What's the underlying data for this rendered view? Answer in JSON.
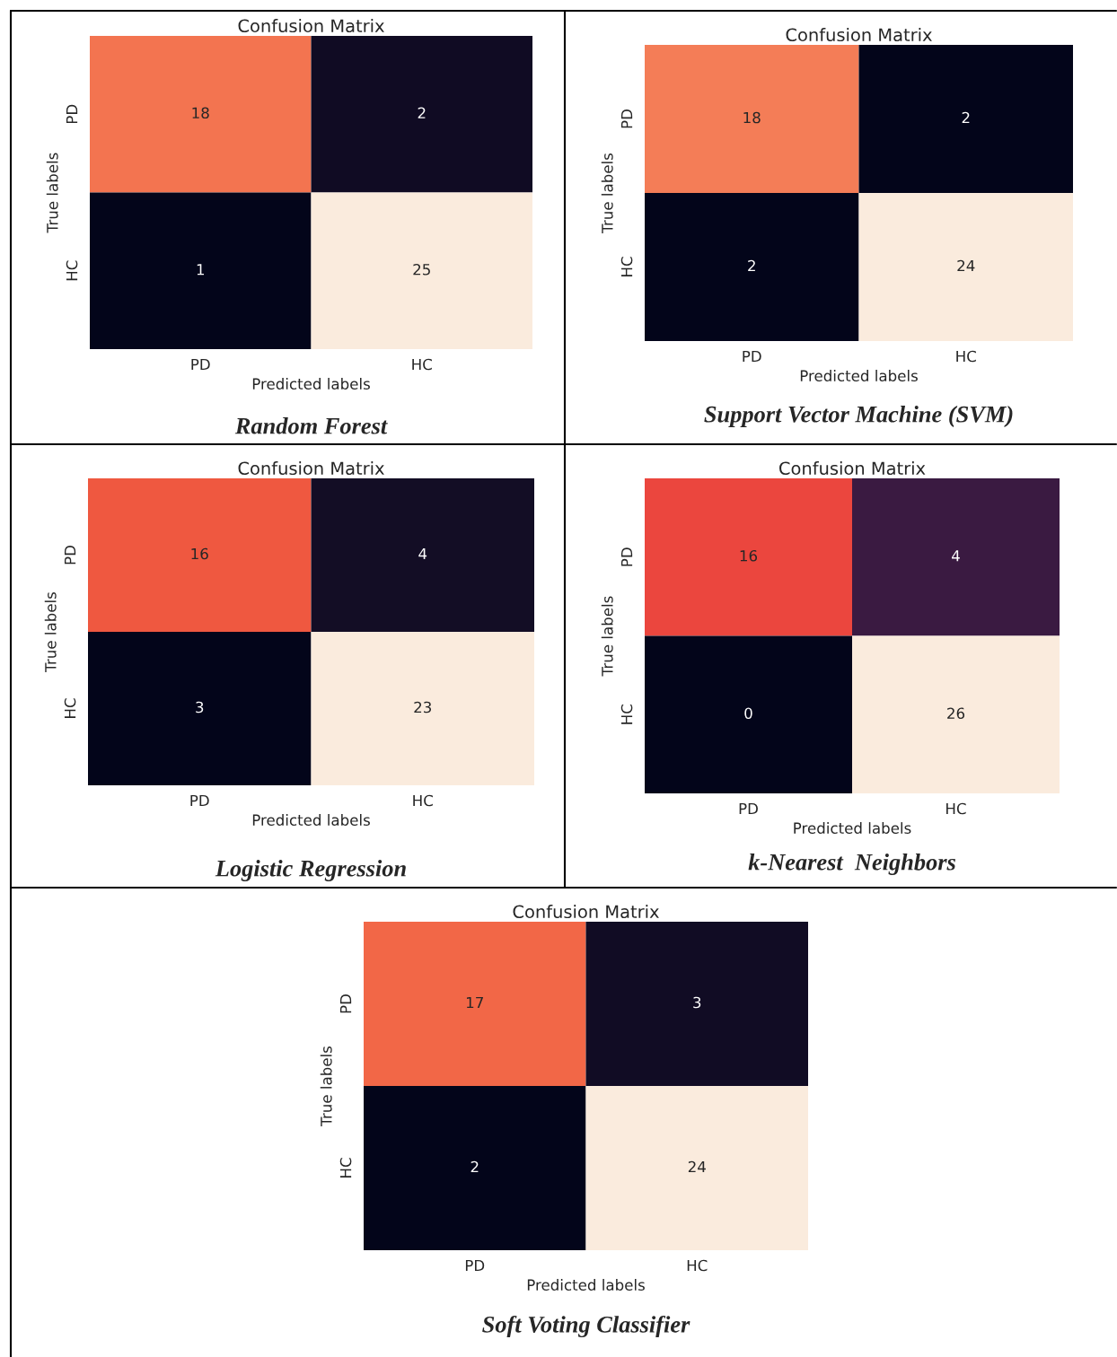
{
  "chart_data": [
    {
      "type": "heatmap",
      "title": "Confusion Matrix",
      "xlabel": "Predicted labels",
      "ylabel": "True labels",
      "categories": [
        "PD",
        "HC"
      ],
      "y_categories": [
        "PD",
        "HC"
      ],
      "cells": [
        [
          18,
          2
        ],
        [
          1,
          25
        ]
      ],
      "data_labels": true,
      "annotations": [
        "Random Forest"
      ]
    },
    {
      "type": "heatmap",
      "title": "Confusion Matrix",
      "xlabel": "Predicted labels",
      "ylabel": "True labels",
      "categories": [
        "PD",
        "HC"
      ],
      "y_categories": [
        "PD",
        "HC"
      ],
      "cells": [
        [
          18,
          2
        ],
        [
          2,
          24
        ]
      ],
      "data_labels": true,
      "annotations": [
        "Support Vector Machine (SVM)"
      ]
    },
    {
      "type": "heatmap",
      "title": "Confusion Matrix",
      "xlabel": "Predicted labels",
      "ylabel": "True labels",
      "categories": [
        "PD",
        "HC"
      ],
      "y_categories": [
        "PD",
        "HC"
      ],
      "cells": [
        [
          16,
          4
        ],
        [
          3,
          23
        ]
      ],
      "data_labels": true,
      "annotations": [
        "Logistic Regression"
      ]
    },
    {
      "type": "heatmap",
      "title": "Confusion Matrix",
      "xlabel": "Predicted labels",
      "ylabel": "True labels",
      "categories": [
        "PD",
        "HC"
      ],
      "y_categories": [
        "PD",
        "HC"
      ],
      "cells": [
        [
          16,
          4
        ],
        [
          0,
          26
        ]
      ],
      "data_labels": true,
      "annotations": [
        "k-Nearest  Neighbors"
      ]
    },
    {
      "type": "heatmap",
      "title": "Confusion Matrix",
      "xlabel": "Predicted labels",
      "ylabel": "True labels",
      "categories": [
        "PD",
        "HC"
      ],
      "y_categories": [
        "PD",
        "HC"
      ],
      "cells": [
        [
          17,
          3
        ],
        [
          2,
          24
        ]
      ],
      "data_labels": true,
      "annotations": [
        "Soft Voting Classifier"
      ]
    }
  ]
}
